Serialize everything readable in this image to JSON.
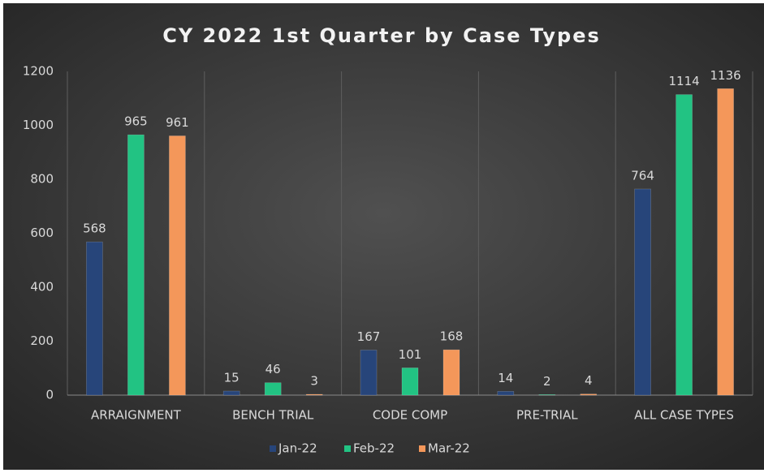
{
  "chart_data": {
    "type": "bar",
    "title": "CY 2022 1st Quarter by Case Types",
    "categories": [
      "ARRAIGNMENT",
      "BENCH TRIAL",
      "CODE COMP",
      "PRE-TRIAL",
      "ALL CASE TYPES"
    ],
    "series": [
      {
        "name": "Jan-22",
        "color": "#27457a",
        "values": [
          568,
          15,
          167,
          14,
          764
        ]
      },
      {
        "name": "Feb-22",
        "color": "#22c383",
        "values": [
          965,
          46,
          101,
          2,
          1114
        ]
      },
      {
        "name": "Mar-22",
        "color": "#f4975a",
        "values": [
          961,
          3,
          168,
          4,
          1136
        ]
      }
    ],
    "ylim": [
      0,
      1200
    ],
    "yticks": [
      0,
      200,
      400,
      600,
      800,
      1000,
      1200
    ],
    "legend": "bottom"
  }
}
